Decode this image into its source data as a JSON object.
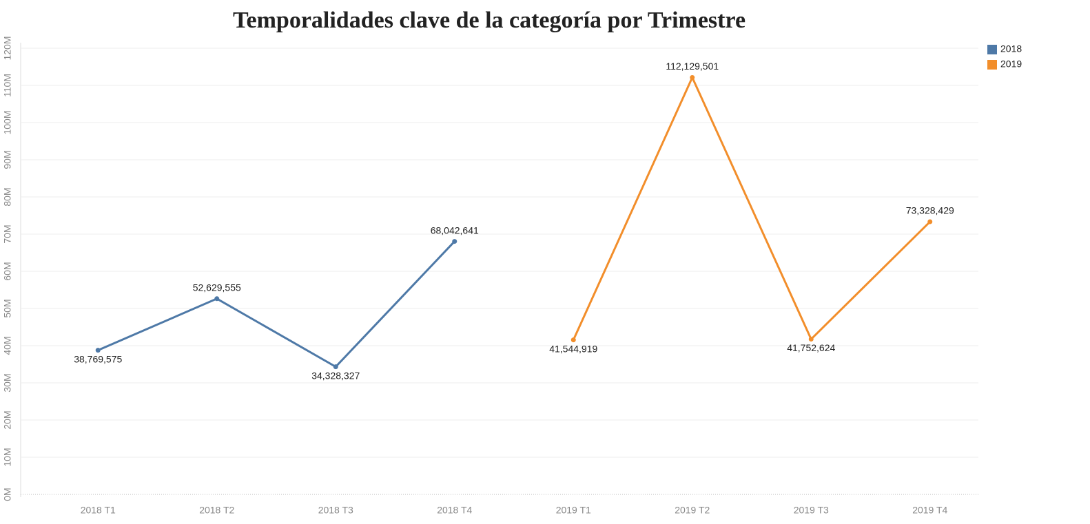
{
  "chart_data": {
    "type": "line",
    "title": "Temporalidades clave de la categoría por Trimestre",
    "categories": [
      "2018 T1",
      "2018 T2",
      "2018 T3",
      "2018 T4",
      "2019 T1",
      "2019 T2",
      "2019 T3",
      "2019 T4"
    ],
    "series": [
      {
        "name": "2018",
        "color": "#4e79a7",
        "values": [
          38769575,
          52629555,
          34328327,
          68042641,
          null,
          null,
          null,
          null
        ],
        "value_labels": [
          "38,769,575",
          "52,629,555",
          "34,328,327",
          "68,042,641",
          null,
          null,
          null,
          null
        ]
      },
      {
        "name": "2019",
        "color": "#f28e2b",
        "values": [
          null,
          null,
          null,
          null,
          41544919,
          112129501,
          41752624,
          73328429
        ],
        "value_labels": [
          null,
          null,
          null,
          null,
          "41,544,919",
          "112,129,501",
          "41,752,624",
          "73,328,429"
        ]
      }
    ],
    "ylim": [
      0,
      120000000
    ],
    "yticks": [
      {
        "value": 0,
        "label": "0M"
      },
      {
        "value": 10000000,
        "label": "10M"
      },
      {
        "value": 20000000,
        "label": "20M"
      },
      {
        "value": 30000000,
        "label": "30M"
      },
      {
        "value": 40000000,
        "label": "40M"
      },
      {
        "value": 50000000,
        "label": "50M"
      },
      {
        "value": 60000000,
        "label": "60M"
      },
      {
        "value": 70000000,
        "label": "70M"
      },
      {
        "value": 80000000,
        "label": "80M"
      },
      {
        "value": 90000000,
        "label": "90M"
      },
      {
        "value": 100000000,
        "label": "100M"
      },
      {
        "value": 110000000,
        "label": "110M"
      },
      {
        "value": 120000000,
        "label": "120M"
      }
    ],
    "grid": true,
    "legend": "top-right"
  }
}
